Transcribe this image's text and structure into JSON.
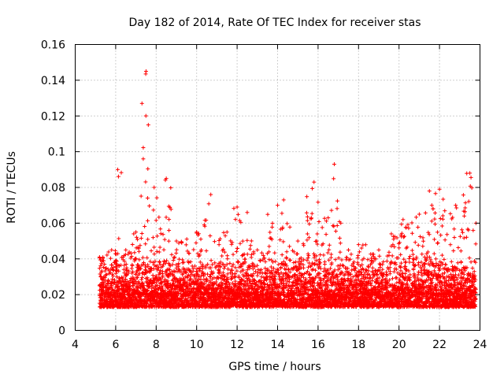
{
  "chart_data": {
    "type": "scatter",
    "title": "Day 182 of 2014, Rate Of TEC Index for receiver stas",
    "xlabel": "GPS time / hours",
    "ylabel": "ROTI / TECUs",
    "xlim": [
      4,
      24
    ],
    "ylim": [
      0,
      0.16
    ],
    "x_ticks": [
      4,
      6,
      8,
      10,
      12,
      14,
      16,
      18,
      20,
      22,
      24
    ],
    "y_ticks": [
      0,
      0.02,
      0.04,
      0.06,
      0.08,
      0.1,
      0.12,
      0.14,
      0.16
    ],
    "x_tick_labels": [
      "4",
      "6",
      "8",
      "10",
      "12",
      "14",
      "16",
      "18",
      "20",
      "22",
      "24"
    ],
    "y_tick_labels": [
      "0",
      "0.02",
      "0.04",
      "0.06",
      "0.08",
      "0.1",
      "0.12",
      "0.14",
      "0.16"
    ],
    "grid": true,
    "marker": "+",
    "series_color": "#ff0000",
    "series": [
      {
        "name": "ROTI",
        "x_range": [
          5.2,
          23.8
        ],
        "typical_range": [
          0.005,
          0.035
        ],
        "envelope": [
          {
            "x": 5.2,
            "y": 0.041
          },
          {
            "x": 5.8,
            "y": 0.045
          },
          {
            "x": 6.1,
            "y": 0.09
          },
          {
            "x": 6.5,
            "y": 0.045
          },
          {
            "x": 7.0,
            "y": 0.055
          },
          {
            "x": 7.5,
            "y": 0.145
          },
          {
            "x": 7.9,
            "y": 0.08
          },
          {
            "x": 8.5,
            "y": 0.085
          },
          {
            "x": 9.0,
            "y": 0.05
          },
          {
            "x": 10.0,
            "y": 0.055
          },
          {
            "x": 10.7,
            "y": 0.076
          },
          {
            "x": 11.5,
            "y": 0.055
          },
          {
            "x": 12.0,
            "y": 0.069
          },
          {
            "x": 12.5,
            "y": 0.066
          },
          {
            "x": 13.0,
            "y": 0.045
          },
          {
            "x": 14.0,
            "y": 0.07
          },
          {
            "x": 14.3,
            "y": 0.073
          },
          {
            "x": 15.0,
            "y": 0.05
          },
          {
            "x": 15.8,
            "y": 0.083
          },
          {
            "x": 16.5,
            "y": 0.063
          },
          {
            "x": 16.8,
            "y": 0.093
          },
          {
            "x": 17.5,
            "y": 0.045
          },
          {
            "x": 18.0,
            "y": 0.048
          },
          {
            "x": 19.0,
            "y": 0.045
          },
          {
            "x": 20.2,
            "y": 0.062
          },
          {
            "x": 21.0,
            "y": 0.065
          },
          {
            "x": 21.5,
            "y": 0.078
          },
          {
            "x": 22.0,
            "y": 0.079
          },
          {
            "x": 22.8,
            "y": 0.07
          },
          {
            "x": 23.5,
            "y": 0.088
          },
          {
            "x": 23.8,
            "y": 0.06
          }
        ]
      }
    ]
  }
}
